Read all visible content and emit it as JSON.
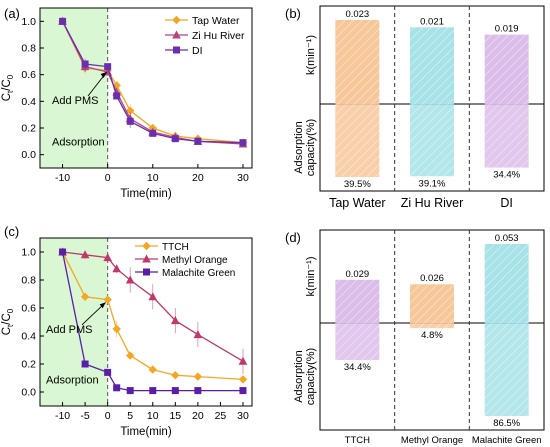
{
  "colors": {
    "tap": "#f5a623",
    "zihu": "#b5477a",
    "di": "#6a2fb0",
    "ttch": "#f5a623",
    "mo": "#c0396b",
    "mg": "#5a1fa8",
    "adsorption_zone": "#d9f7d2",
    "bar_orange": "#f7c79a",
    "bar_cyan": "#9edfe6",
    "bar_purple": "#d6b4e6"
  },
  "chart_data": [
    {
      "panel": "(a)",
      "type": "line",
      "xlabel": "Time(min)",
      "ylabel": "Ct/C0",
      "xlim": [
        -15,
        32
      ],
      "ylim": [
        -0.1,
        1.1
      ],
      "xticks": [
        -10,
        0,
        10,
        20,
        30
      ],
      "yticks": [
        0.0,
        0.2,
        0.4,
        0.6,
        0.8,
        1.0
      ],
      "x": [
        -10,
        -5,
        0,
        2,
        5,
        10,
        15,
        20,
        30
      ],
      "series": [
        {
          "name": "Tap Water",
          "values": [
            1.0,
            0.65,
            0.63,
            0.52,
            0.33,
            0.2,
            0.14,
            0.12,
            0.09
          ]
        },
        {
          "name": "Zi Hu River",
          "values": [
            1.0,
            0.66,
            0.62,
            0.47,
            0.27,
            0.17,
            0.13,
            0.1,
            0.08
          ]
        },
        {
          "name": "DI",
          "values": [
            1.0,
            0.68,
            0.66,
            0.44,
            0.25,
            0.16,
            0.12,
            0.1,
            0.09
          ]
        }
      ],
      "legend": "top-right",
      "annotations": [
        "Add PMS",
        "Adsorption"
      ]
    },
    {
      "panel": "(b)",
      "type": "bar",
      "categories": [
        "Tap Water",
        "Zi Hu River",
        "DI"
      ],
      "k_values": [
        0.023,
        0.021,
        0.019
      ],
      "k_labels": [
        "0.023",
        "0.021",
        "0.019"
      ],
      "adsorption_labels": [
        "39.5%",
        "39.1%",
        "34.4%"
      ],
      "adsorption_percent": [
        39.5,
        39.1,
        34.4
      ],
      "ylabel_top": "k(min⁻¹)",
      "ylabel_bottom": "Adsorption capacity(%)"
    },
    {
      "panel": "(c)",
      "type": "line",
      "xlabel": "Time(min)",
      "ylabel": "Ct/C0",
      "xlim": [
        -15,
        32
      ],
      "ylim": [
        -0.1,
        1.1
      ],
      "xticks": [
        -10,
        -5,
        0,
        5,
        10,
        15,
        20,
        25,
        30
      ],
      "yticks": [
        0.0,
        0.2,
        0.4,
        0.6,
        0.8,
        1.0
      ],
      "x": [
        -10,
        -5,
        0,
        2,
        5,
        10,
        15,
        20,
        30
      ],
      "series": [
        {
          "name": "TTCH",
          "values": [
            1.0,
            0.68,
            0.66,
            0.45,
            0.26,
            0.16,
            0.12,
            0.11,
            0.09
          ]
        },
        {
          "name": "Methyl Orange",
          "values": [
            1.0,
            0.98,
            0.96,
            0.88,
            0.8,
            0.68,
            0.51,
            0.41,
            0.22
          ]
        },
        {
          "name": "Malachite Green",
          "values": [
            1.0,
            0.2,
            0.14,
            0.03,
            0.01,
            0.01,
            0.01,
            0.01,
            0.01
          ]
        }
      ],
      "legend": "top-right",
      "annotations": [
        "Add PMS",
        "Adsorption"
      ]
    },
    {
      "panel": "(d)",
      "type": "bar",
      "categories": [
        "TTCH",
        "Methyl Orange",
        "Malachite Green"
      ],
      "k_values": [
        0.029,
        0.026,
        0.053
      ],
      "k_labels": [
        "0.029",
        "0.026",
        "0.053"
      ],
      "adsorption_labels": [
        "34.4%",
        "4.8%",
        "86.5%"
      ],
      "adsorption_percent": [
        34.4,
        4.8,
        86.5
      ],
      "ylabel_top": "k(min⁻¹)",
      "ylabel_bottom": "Adsorption capacity(%)"
    }
  ]
}
